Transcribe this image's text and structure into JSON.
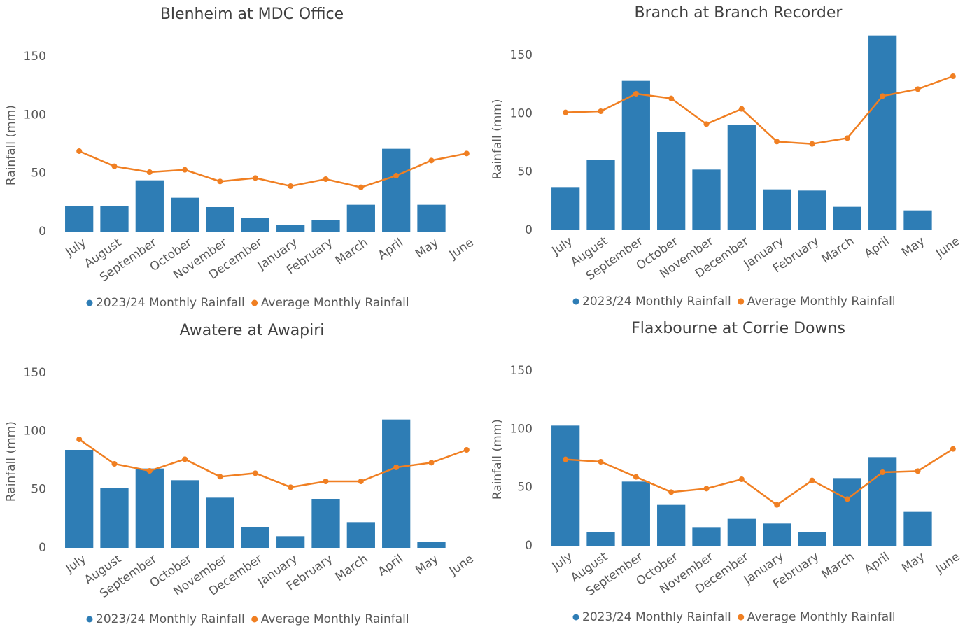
{
  "chart_data": [
    {
      "type": "bar+line",
      "title": "Blenheim at MDC Office",
      "y_label": "Rainfall (mm)",
      "categories": [
        "July",
        "August",
        "September",
        "October",
        "November",
        "December",
        "January",
        "February",
        "March",
        "April",
        "May",
        "June"
      ],
      "series": [
        {
          "name": "2023/24 Monthly Rainfall",
          "type": "bar",
          "color": "#2e7db5",
          "values": [
            22,
            22,
            44,
            29,
            21,
            12,
            6,
            10,
            23,
            71,
            23,
            null
          ]
        },
        {
          "name": "Average Monthly Rainfall",
          "type": "line",
          "color": "#f07f22",
          "values": [
            69,
            56,
            51,
            53,
            43,
            46,
            39,
            45,
            38,
            48,
            61,
            67
          ]
        }
      ],
      "ylim": [
        0,
        160
      ],
      "yticks": [
        0,
        50,
        100,
        150
      ],
      "legend": "bottom"
    },
    {
      "type": "bar+line",
      "title": "Branch at Branch Recorder",
      "y_label": "Rainfall (mm)",
      "categories": [
        "July",
        "August",
        "September",
        "October",
        "November",
        "December",
        "January",
        "February",
        "March",
        "April",
        "May",
        "June"
      ],
      "series": [
        {
          "name": "2023/24 Monthly Rainfall",
          "type": "bar",
          "color": "#2e7db5",
          "values": [
            37,
            60,
            128,
            84,
            52,
            90,
            35,
            34,
            20,
            167,
            17,
            null
          ]
        },
        {
          "name": "Average Monthly Rainfall",
          "type": "line",
          "color": "#f07f22",
          "values": [
            101,
            102,
            117,
            113,
            91,
            104,
            76,
            74,
            79,
            115,
            121,
            132
          ]
        }
      ],
      "ylim": [
        0,
        168
      ],
      "yticks": [
        0,
        50,
        100,
        150
      ],
      "legend": "bottom"
    },
    {
      "type": "bar+line",
      "title": "Awatere at Awapiri",
      "y_label": "Rainfall (mm)",
      "categories": [
        "July",
        "August",
        "September",
        "October",
        "November",
        "December",
        "January",
        "February",
        "March",
        "April",
        "May",
        "June"
      ],
      "series": [
        {
          "name": "2023/24 Monthly Rainfall",
          "type": "bar",
          "color": "#2e7db5",
          "values": [
            84,
            51,
            68,
            58,
            43,
            18,
            10,
            42,
            22,
            110,
            5,
            null
          ]
        },
        {
          "name": "Average Monthly Rainfall",
          "type": "line",
          "color": "#f07f22",
          "values": [
            93,
            72,
            66,
            76,
            61,
            64,
            52,
            57,
            57,
            69,
            73,
            84
          ]
        }
      ],
      "ylim": [
        0,
        160
      ],
      "yticks": [
        0,
        50,
        100,
        150
      ],
      "legend": "bottom"
    },
    {
      "type": "bar+line",
      "title": "Flaxbourne at Corrie Downs",
      "y_label": "Rainfall (mm)",
      "categories": [
        "July",
        "August",
        "September",
        "October",
        "November",
        "December",
        "January",
        "February",
        "March",
        "April",
        "May",
        "June"
      ],
      "series": [
        {
          "name": "2023/24 Monthly Rainfall",
          "type": "bar",
          "color": "#2e7db5",
          "values": [
            103,
            12,
            55,
            35,
            16,
            23,
            19,
            12,
            58,
            76,
            29,
            null
          ]
        },
        {
          "name": "Average Monthly Rainfall",
          "type": "line",
          "color": "#f07f22",
          "values": [
            74,
            72,
            59,
            46,
            49,
            57,
            35,
            56,
            40,
            63,
            64,
            83
          ]
        }
      ],
      "ylim": [
        0,
        160
      ],
      "yticks": [
        0,
        50,
        100,
        150
      ],
      "legend": "bottom"
    }
  ]
}
